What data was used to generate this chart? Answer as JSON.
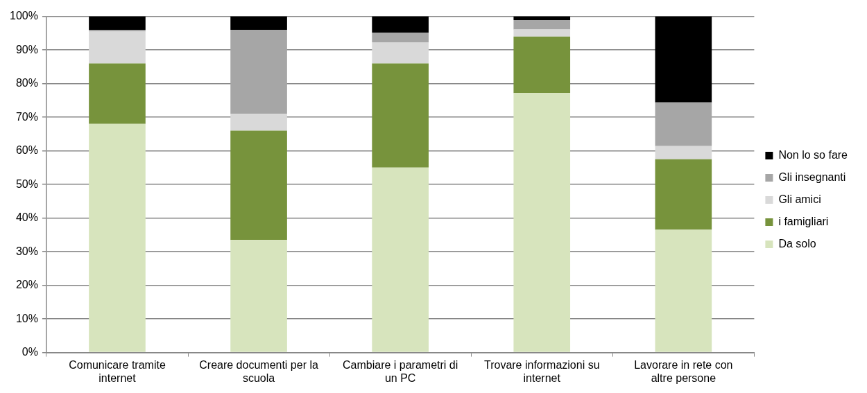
{
  "chart_data": {
    "type": "bar",
    "stacked": true,
    "categories": [
      "Comunicare tramite internet",
      "Creare documenti per la scuola",
      "Cambiare i parametri di un PC",
      "Trovare informazioni su internet",
      "Lavorare in rete con altre persone"
    ],
    "series": [
      {
        "name": "Da solo",
        "color": "#d7e4bd",
        "values": [
          68,
          33.5,
          55,
          77.2,
          36.5
        ]
      },
      {
        "name": "i famigliari",
        "color": "#77933c",
        "values": [
          18,
          32.5,
          31,
          16.8,
          21
        ]
      },
      {
        "name": "Gli amici",
        "color": "#d9d9d9",
        "values": [
          9.5,
          5,
          6.3,
          2.1,
          3.9
        ]
      },
      {
        "name": "Gli insegnanti",
        "color": "#a6a6a6",
        "values": [
          0.5,
          25,
          2.9,
          2.8,
          13
        ]
      },
      {
        "name": "Non lo so fare",
        "color": "#000000",
        "values": [
          4,
          4,
          4.8,
          1.1,
          25.6
        ]
      }
    ],
    "ylim": [
      0,
      100
    ],
    "yticks": [
      {
        "value": 0,
        "label": "0%"
      },
      {
        "value": 10,
        "label": "10%"
      },
      {
        "value": 20,
        "label": "20%"
      },
      {
        "value": 30,
        "label": "30%"
      },
      {
        "value": 40,
        "label": "40%"
      },
      {
        "value": 50,
        "label": "50%"
      },
      {
        "value": 60,
        "label": "60%"
      },
      {
        "value": 70,
        "label": "70%"
      },
      {
        "value": 80,
        "label": "80%"
      },
      {
        "value": 90,
        "label": "90%"
      },
      {
        "value": 100,
        "label": "100%"
      }
    ],
    "grid": "y",
    "legend": "right"
  }
}
